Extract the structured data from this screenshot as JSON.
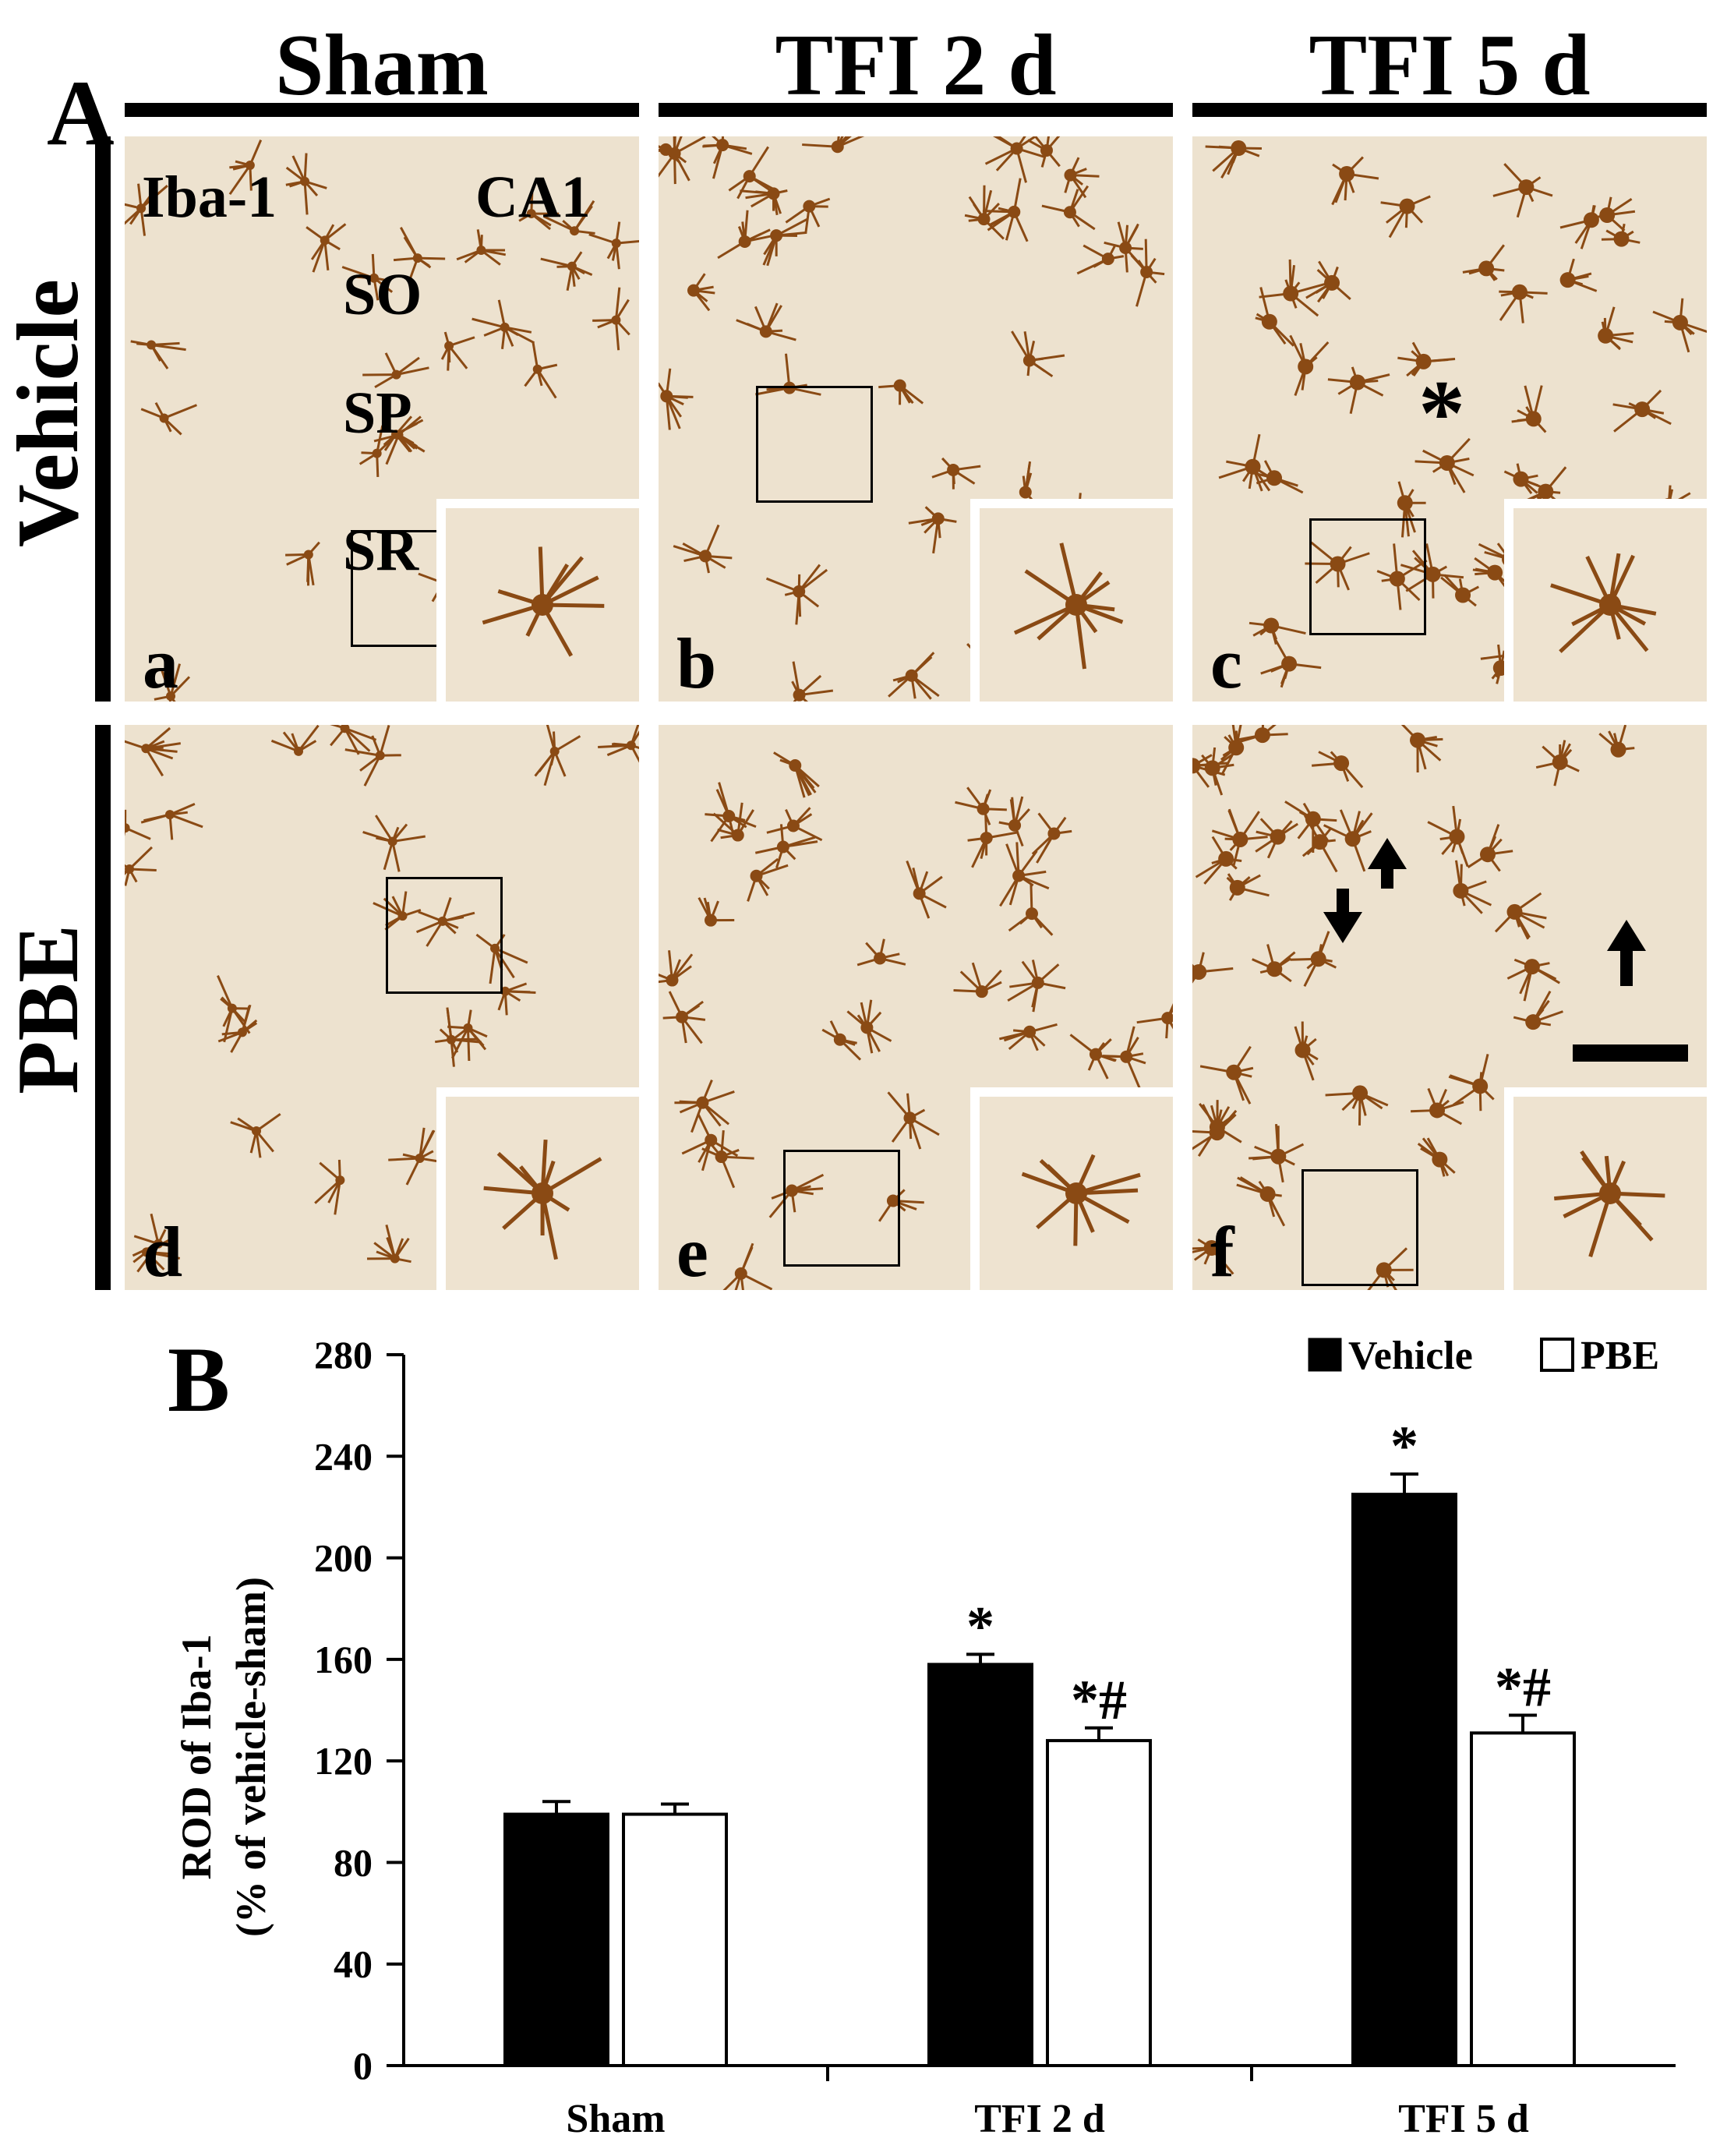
{
  "figure": {
    "panel_A_letter": "A",
    "panel_B_letter": "B",
    "column_headers": [
      "Sham",
      "TFI 2 d",
      "TFI 5 d"
    ],
    "row_labels": [
      "Vehicle",
      "PBE"
    ],
    "panel_letters": [
      "a",
      "b",
      "c",
      "d",
      "e",
      "f"
    ],
    "panel_a_labels": {
      "stain": "Iba-1",
      "region": "CA1",
      "so": "SO",
      "sp": "SP",
      "sr": "SR"
    },
    "panel_c_marker": "*",
    "colors": {
      "tissue_background": "#ede2cf",
      "cell_stain": "#8a4a14",
      "bar_vehicle": "#000000",
      "bar_pbe": "#ffffff"
    }
  },
  "chart_data": {
    "type": "bar",
    "categories": [
      "Sham",
      "TFI 2 d",
      "TFI 5 d"
    ],
    "series": [
      {
        "name": "Vehicle",
        "values": [
          99,
          158,
          225
        ],
        "errors": [
          5,
          4,
          8
        ],
        "annotations": [
          "",
          "*",
          "*"
        ]
      },
      {
        "name": "PBE",
        "values": [
          99,
          128,
          131
        ],
        "errors": [
          4,
          5,
          7
        ],
        "annotations": [
          "",
          "*#",
          "*#"
        ]
      }
    ],
    "ylabel_line1": "ROD of Iba-1",
    "ylabel_line2": "(% of vehicle-sham)",
    "ylim": [
      0,
      280
    ],
    "yticks": [
      "0",
      "40",
      "80",
      "120",
      "160",
      "200",
      "240",
      "280"
    ],
    "legend_position": "top-right",
    "legend_labels": [
      "Vehicle",
      "PBE"
    ]
  }
}
